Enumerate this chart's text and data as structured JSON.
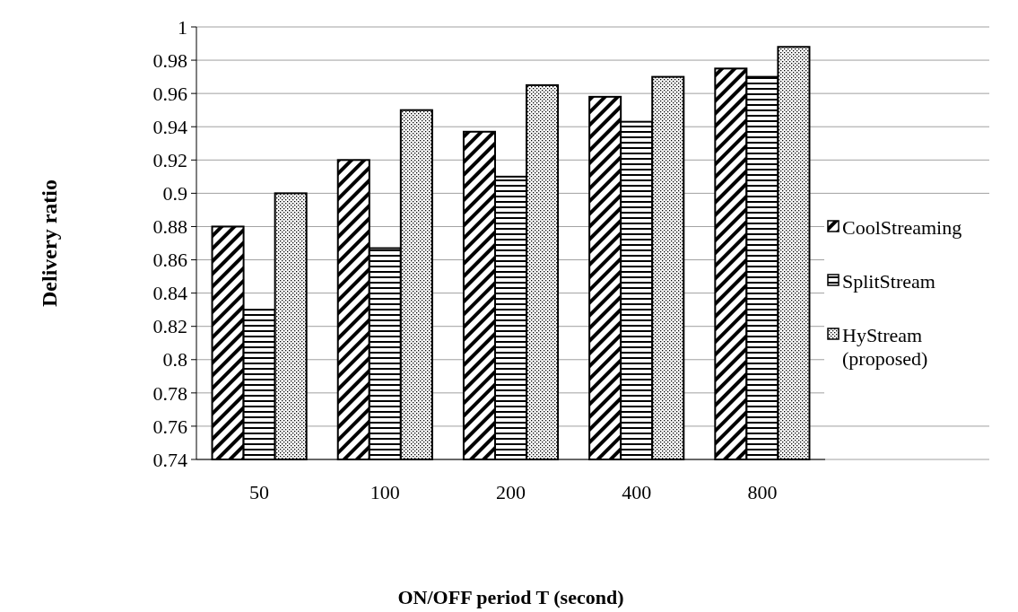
{
  "chart_data": {
    "type": "bar",
    "xlabel": "ON/OFF period T (second)",
    "ylabel": "Delivery ratio",
    "categories": [
      "50",
      "100",
      "200",
      "400",
      "800"
    ],
    "series": [
      {
        "name": "CoolStreaming",
        "color": "#000000",
        "values": [
          0.88,
          0.92,
          0.937,
          0.958,
          0.975
        ]
      },
      {
        "name": "SplitStream",
        "color": "#000000",
        "values": [
          0.83,
          0.867,
          0.91,
          0.943,
          0.97
        ]
      },
      {
        "name": "HyStream (proposed)",
        "color": "#000000",
        "values": [
          0.9,
          0.95,
          0.965,
          0.97,
          0.988
        ]
      }
    ],
    "ylim": [
      0.74,
      1
    ],
    "yticks": [
      0.74,
      0.76,
      0.78,
      0.8,
      0.82,
      0.84,
      0.86,
      0.88,
      0.9,
      0.92,
      0.94,
      0.96,
      0.98,
      1
    ],
    "grid": "y",
    "legend": "right"
  }
}
